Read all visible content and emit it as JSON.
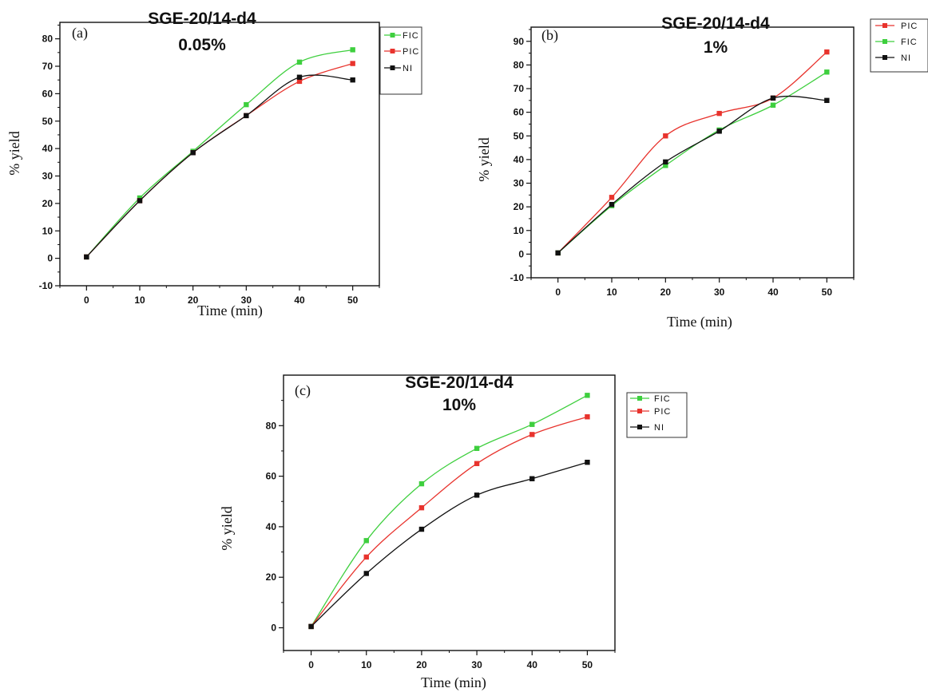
{
  "chart_data": [
    {
      "type": "line",
      "panel_label": "(a)",
      "title": "SGE-20/14-d4",
      "subtitle": "0.05%",
      "xlabel": "Time (min)",
      "ylabel": "% yield",
      "xlim": [
        -5,
        55
      ],
      "ylim": [
        -10,
        86
      ],
      "x_ticks": [
        0,
        10,
        20,
        30,
        40,
        50
      ],
      "y_ticks": [
        -10,
        0,
        10,
        20,
        30,
        40,
        50,
        60,
        70,
        80
      ],
      "legend_position": "top-right",
      "series": [
        {
          "name": "FIC",
          "color": "#3ecf3e",
          "x": [
            0,
            10,
            20,
            30,
            40,
            50
          ],
          "values": [
            0.5,
            22,
            39,
            56,
            71.5,
            76
          ]
        },
        {
          "name": "PIC",
          "color": "#e8332d",
          "x": [
            0,
            10,
            20,
            30,
            40,
            50
          ],
          "values": [
            0.5,
            21,
            38.5,
            52,
            64.5,
            71
          ]
        },
        {
          "name": "NI",
          "color": "#111111",
          "x": [
            0,
            10,
            20,
            30,
            40,
            50
          ],
          "values": [
            0.5,
            21,
            38.5,
            52,
            66,
            65
          ]
        }
      ]
    },
    {
      "type": "line",
      "panel_label": "(b)",
      "title": "SGE-20/14-d4",
      "subtitle": "1%",
      "xlabel": "Time (min)",
      "ylabel": "% yield",
      "xlim": [
        -5,
        55
      ],
      "ylim": [
        -10,
        96
      ],
      "x_ticks": [
        0,
        10,
        20,
        30,
        40,
        50
      ],
      "y_ticks": [
        -10,
        0,
        10,
        20,
        30,
        40,
        50,
        60,
        70,
        80,
        90
      ],
      "legend_position": "top-right",
      "series": [
        {
          "name": "PIC",
          "color": "#e8332d",
          "x": [
            0,
            10,
            20,
            30,
            40,
            50
          ],
          "values": [
            0.5,
            24,
            50,
            59.5,
            66,
            85.5
          ]
        },
        {
          "name": "FIC",
          "color": "#3ecf3e",
          "x": [
            0,
            10,
            20,
            30,
            40,
            50
          ],
          "values": [
            0.5,
            20.5,
            37.5,
            52.5,
            63,
            77
          ]
        },
        {
          "name": "NI",
          "color": "#111111",
          "x": [
            0,
            10,
            20,
            30,
            40,
            50
          ],
          "values": [
            0.5,
            21,
            39,
            52,
            66,
            65
          ]
        }
      ]
    },
    {
      "type": "line",
      "panel_label": "(c)",
      "title": "SGE-20/14-d4",
      "subtitle": "10%",
      "xlabel": "Time (min)",
      "ylabel": "% yield",
      "xlim": [
        -5,
        55
      ],
      "ylim": [
        -9,
        100
      ],
      "x_ticks": [
        0,
        10,
        20,
        30,
        40,
        50
      ],
      "y_ticks": [
        0,
        20,
        40,
        60,
        80
      ],
      "legend_position": "top-right",
      "series": [
        {
          "name": "FIC",
          "color": "#3ecf3e",
          "x": [
            0,
            10,
            20,
            30,
            40,
            50
          ],
          "values": [
            0.5,
            34.5,
            57,
            71,
            80.5,
            92
          ]
        },
        {
          "name": "PIC",
          "color": "#e8332d",
          "x": [
            0,
            10,
            20,
            30,
            40,
            50
          ],
          "values": [
            0.5,
            28,
            47.5,
            65,
            76.5,
            83.5
          ]
        },
        {
          "name": "NI",
          "color": "#111111",
          "x": [
            0,
            10,
            20,
            30,
            40,
            50
          ],
          "values": [
            0.5,
            21.5,
            39,
            52.5,
            59,
            65.5
          ]
        }
      ]
    }
  ]
}
